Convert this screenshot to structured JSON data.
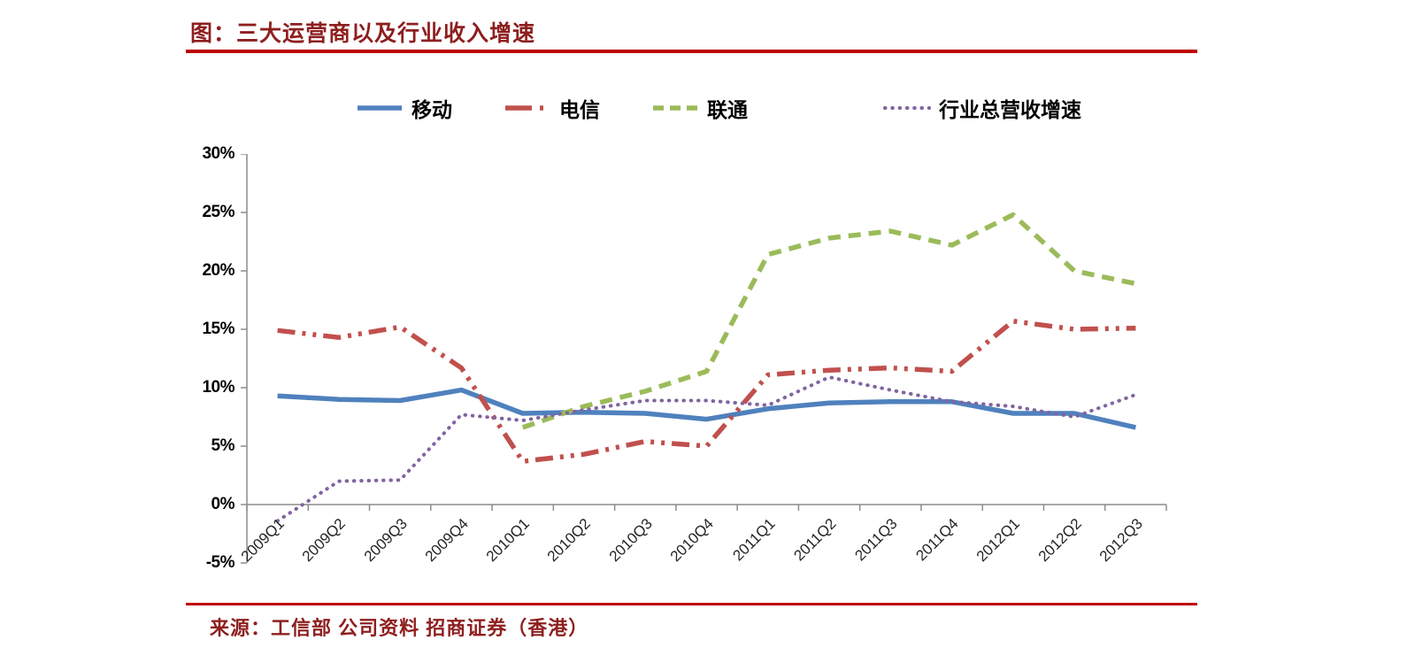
{
  "page": {
    "title": "图：三大运营商以及行业收入增速",
    "source": "来源：工信部 公司资料 招商证券（香港）"
  },
  "colors": {
    "rule_red": "#C00000",
    "heading_text": "#8E1F1F",
    "axis_line": "#8C8C8C",
    "tick_label": "#000000"
  },
  "chart_data": {
    "type": "line",
    "title": "图：三大运营商以及行业收入增速",
    "categories": [
      "2009Q1",
      "2009Q2",
      "2009Q3",
      "2009Q4",
      "2010Q1",
      "2010Q2",
      "2010Q3",
      "2010Q4",
      "2011Q1",
      "2011Q2",
      "2011Q3",
      "2011Q4",
      "2012Q1",
      "2012Q2",
      "2012Q3"
    ],
    "series": [
      {
        "name": "移动",
        "color": "#4F81BD",
        "style": "solid",
        "values": [
          9.3,
          9.0,
          8.9,
          9.8,
          7.8,
          7.9,
          7.8,
          7.3,
          8.2,
          8.7,
          8.8,
          8.8,
          7.8,
          7.8,
          6.6
        ]
      },
      {
        "name": "电信",
        "color": "#C0504D",
        "style": "dash-dot-dot",
        "values": [
          14.9,
          14.3,
          15.2,
          11.7,
          3.7,
          4.3,
          5.4,
          5.0,
          11.1,
          11.5,
          11.7,
          11.4,
          15.7,
          15.0,
          15.1
        ]
      },
      {
        "name": "联通",
        "color": "#9BBB59",
        "style": "dashed",
        "values": [
          null,
          null,
          null,
          null,
          6.6,
          8.4,
          9.7,
          11.4,
          21.4,
          22.8,
          23.4,
          22.2,
          24.8,
          20.0,
          18.9
        ]
      },
      {
        "name": "行业总营收增速",
        "color": "#8064A2",
        "style": "dotted",
        "values": [
          -1.4,
          2.0,
          2.1,
          7.7,
          7.2,
          8.1,
          8.9,
          8.9,
          8.5,
          10.9,
          9.8,
          8.8,
          8.4,
          7.5,
          9.4
        ]
      }
    ],
    "ytick_labels": [
      "30%",
      "25%",
      "20%",
      "15%",
      "10%",
      "5%",
      "0%",
      "-5%"
    ],
    "ylim": [
      -5,
      30
    ],
    "y_step": 5,
    "unit": "%",
    "grid": false,
    "legend_position": "top"
  }
}
